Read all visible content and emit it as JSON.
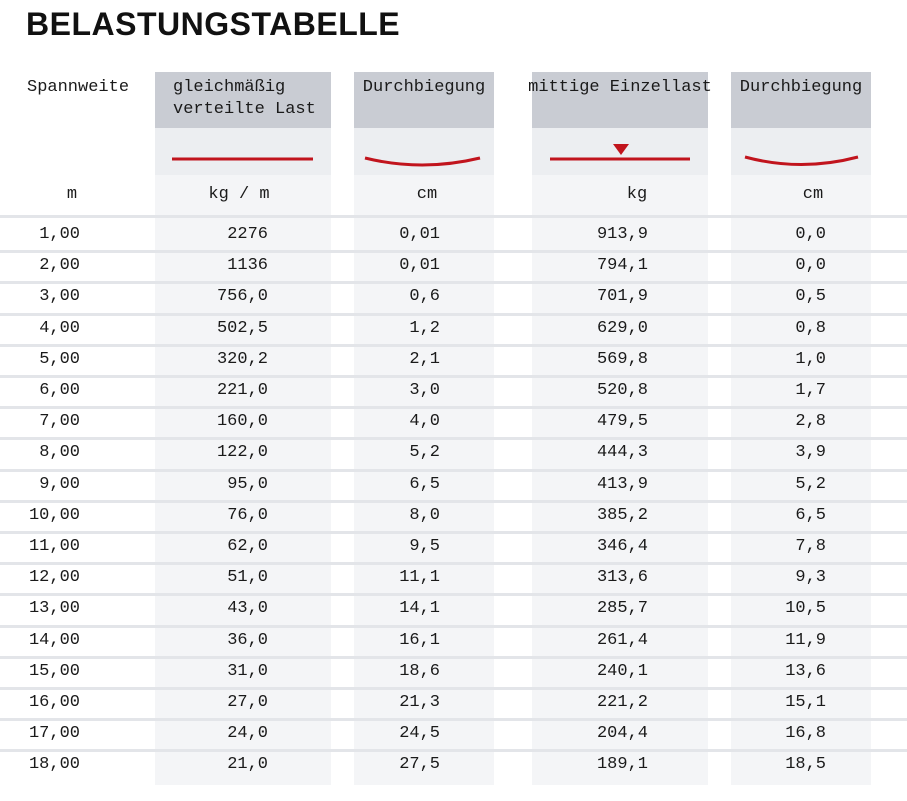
{
  "title": "BELASTUNGSTABELLE",
  "table": {
    "headers": [
      [
        "Spannweite"
      ],
      [
        "gleichmäßig",
        "verteilte Last"
      ],
      [
        "Durchbiegung"
      ],
      [
        "mittige Einzellast"
      ],
      [
        "Durchbiegung"
      ]
    ],
    "units": [
      "m",
      "kg / m",
      "cm",
      "kg",
      "cm"
    ],
    "rows": [
      [
        "1,00",
        "2276",
        "0,01",
        "913,9",
        "0,0"
      ],
      [
        "2,00",
        "1136",
        "0,01",
        "794,1",
        "0,0"
      ],
      [
        "3,00",
        "756,0",
        "0,6",
        "701,9",
        "0,5"
      ],
      [
        "4,00",
        "502,5",
        "1,2",
        "629,0",
        "0,8"
      ],
      [
        "5,00",
        "320,2",
        "2,1",
        "569,8",
        "1,0"
      ],
      [
        "6,00",
        "221,0",
        "3,0",
        "520,8",
        "1,7"
      ],
      [
        "7,00",
        "160,0",
        "4,0",
        "479,5",
        "2,8"
      ],
      [
        "8,00",
        "122,0",
        "5,2",
        "444,3",
        "3,9"
      ],
      [
        "9,00",
        "95,0",
        "6,5",
        "413,9",
        "5,2"
      ],
      [
        "10,00",
        "76,0",
        "8,0",
        "385,2",
        "6,5"
      ],
      [
        "11,00",
        "62,0",
        "9,5",
        "346,4",
        "7,8"
      ],
      [
        "12,00",
        "51,0",
        "11,1",
        "313,6",
        "9,3"
      ],
      [
        "13,00",
        "43,0",
        "14,1",
        "285,7",
        "10,5"
      ],
      [
        "14,00",
        "36,0",
        "16,1",
        "261,4",
        "11,9"
      ],
      [
        "15,00",
        "31,0",
        "18,6",
        "240,1",
        "13,6"
      ],
      [
        "16,00",
        "27,0",
        "21,3",
        "221,2",
        "15,1"
      ],
      [
        "17,00",
        "24,0",
        "24,5",
        "204,4",
        "16,8"
      ],
      [
        "18,00",
        "21,0",
        "27,5",
        "189,1",
        "18,5"
      ]
    ]
  }
}
